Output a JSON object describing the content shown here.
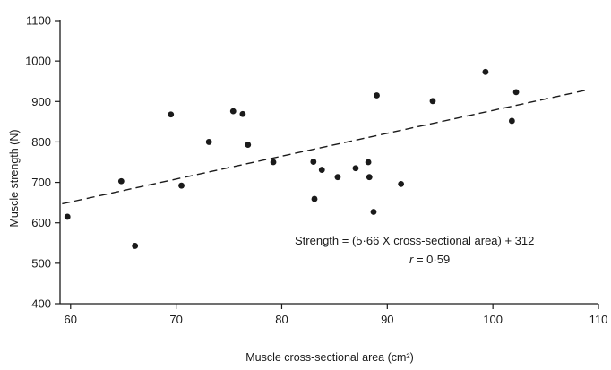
{
  "chart_data": {
    "type": "scatter",
    "title": "",
    "xlabel": "Muscle cross-sectional area (cm²)",
    "ylabel": "Muscle strength (N)",
    "xlim": [
      59,
      110
    ],
    "ylim": [
      400,
      1100
    ],
    "xticks": [
      "60",
      "70",
      "80",
      "90",
      "100",
      "110"
    ],
    "yticks": [
      "400",
      "500",
      "600",
      "700",
      "800",
      "900",
      "1000",
      "1100"
    ],
    "grid": false,
    "legend": "none",
    "points": [
      {
        "x": 59.7,
        "y": 615
      },
      {
        "x": 64.8,
        "y": 703
      },
      {
        "x": 66.1,
        "y": 543
      },
      {
        "x": 69.5,
        "y": 868
      },
      {
        "x": 70.5,
        "y": 692
      },
      {
        "x": 73.1,
        "y": 800
      },
      {
        "x": 75.4,
        "y": 876
      },
      {
        "x": 76.3,
        "y": 869
      },
      {
        "x": 76.8,
        "y": 793
      },
      {
        "x": 79.2,
        "y": 750
      },
      {
        "x": 83.0,
        "y": 751
      },
      {
        "x": 83.1,
        "y": 659
      },
      {
        "x": 83.8,
        "y": 731
      },
      {
        "x": 85.3,
        "y": 713
      },
      {
        "x": 87.0,
        "y": 735
      },
      {
        "x": 88.2,
        "y": 750
      },
      {
        "x": 88.3,
        "y": 713
      },
      {
        "x": 88.7,
        "y": 627
      },
      {
        "x": 89.0,
        "y": 915
      },
      {
        "x": 91.3,
        "y": 696
      },
      {
        "x": 94.3,
        "y": 901
      },
      {
        "x": 99.3,
        "y": 973
      },
      {
        "x": 101.8,
        "y": 852
      },
      {
        "x": 102.2,
        "y": 923
      }
    ],
    "fit_line": {
      "slope": 5.66,
      "intercept": 312,
      "x_from": 59.2,
      "x_to": 108.8,
      "style": "dashed"
    },
    "annotations": {
      "equation": "Strength = (5·66 X cross-sectional area) + 312",
      "r_symbol": "r",
      "r_value": " = 0·59"
    },
    "colors": {
      "points": "#1a1a1a",
      "line": "#1a1a1a",
      "axes": "#1a1a1a"
    }
  }
}
